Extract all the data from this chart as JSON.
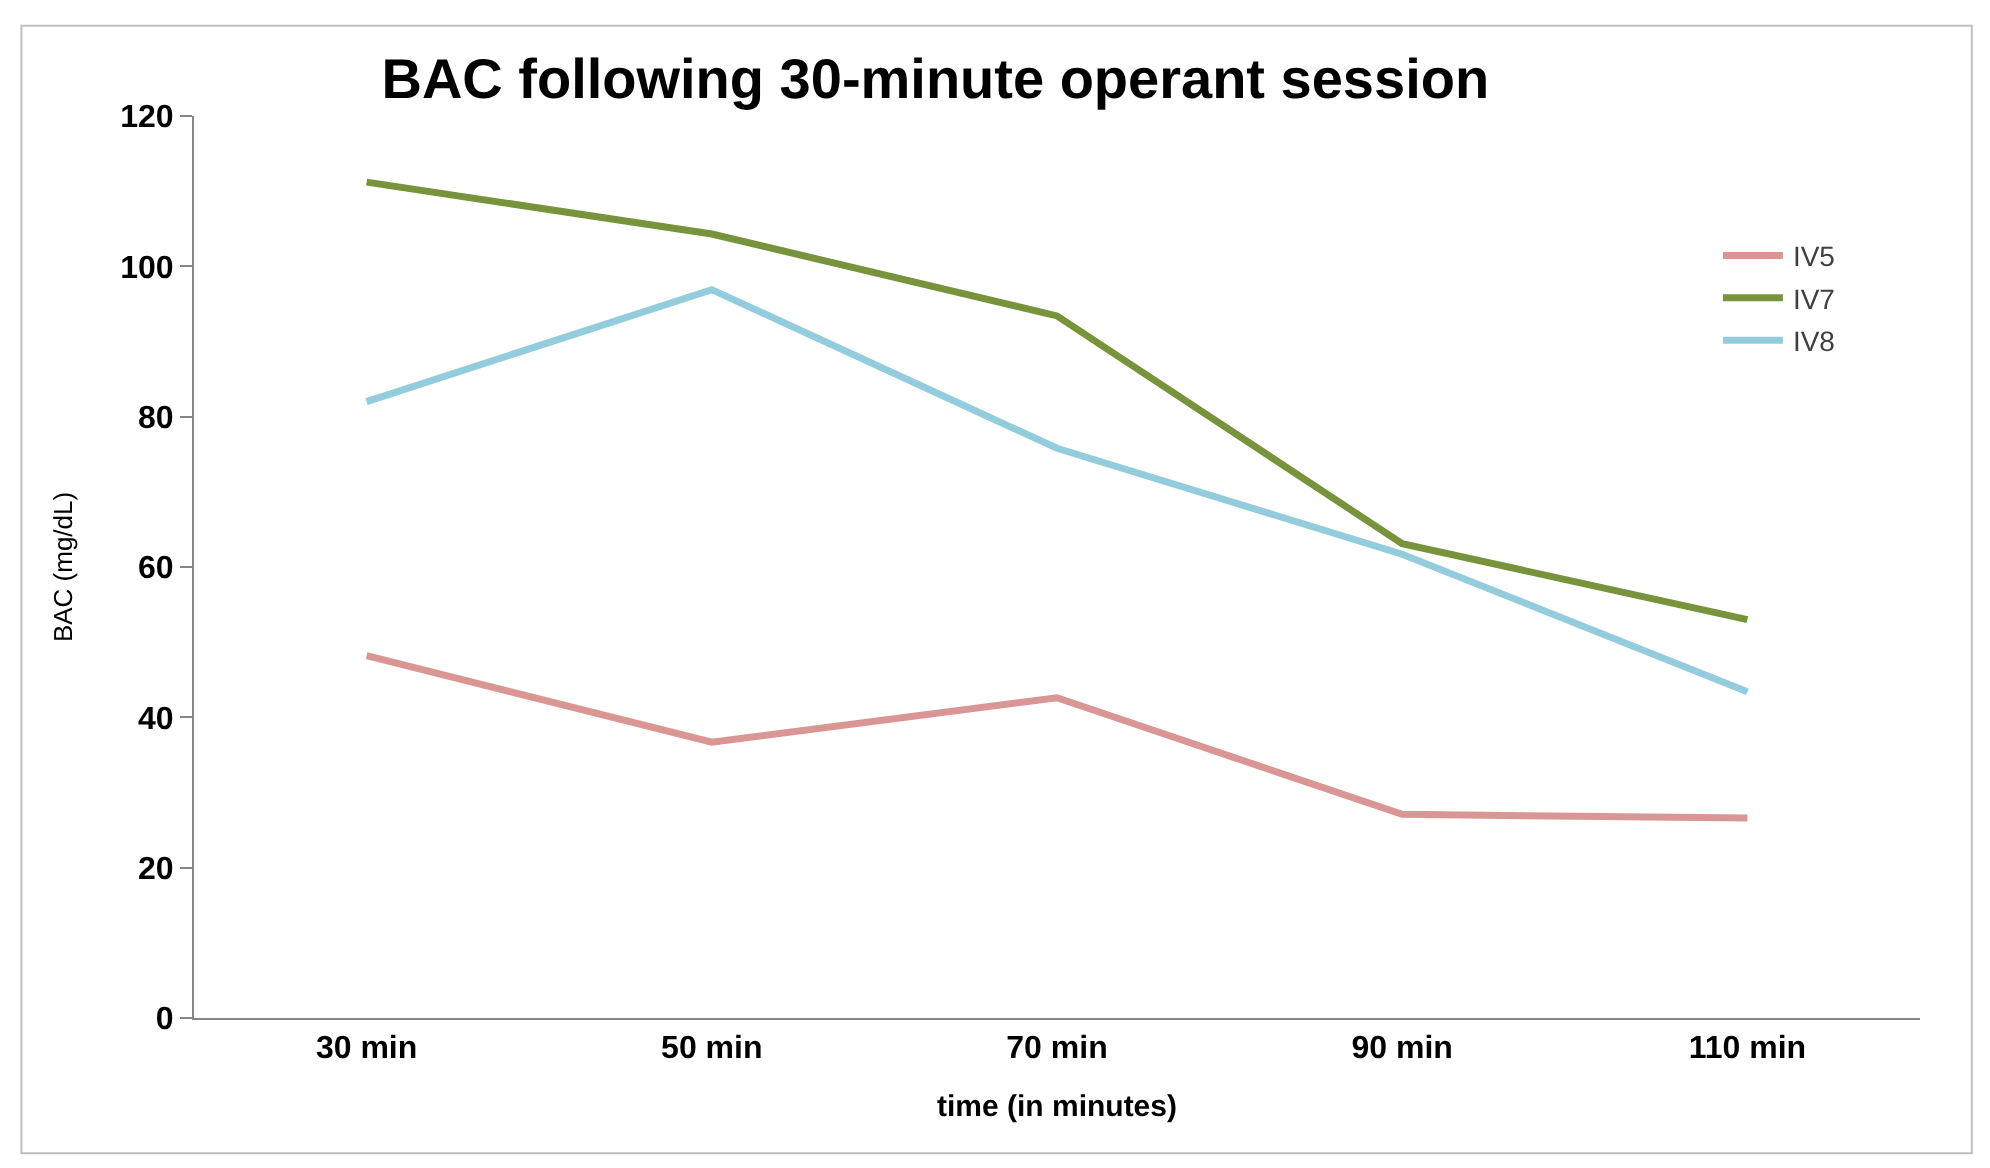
{
  "chart_data": {
    "type": "line",
    "title": "BAC following 30-minute operant session",
    "xlabel": "time (in minutes)",
    "ylabel": "BAC (mg/dL)",
    "categories": [
      "30 min",
      "50 min",
      "70 min",
      "90 min",
      "110 min"
    ],
    "series": [
      {
        "name": "IV5",
        "color": "#d99694",
        "values": [
          48.2,
          36.7,
          42.6,
          27.1,
          26.6
        ]
      },
      {
        "name": "IV7",
        "color": "#77933c",
        "values": [
          111.2,
          104.3,
          93.4,
          63.1,
          53
        ]
      },
      {
        "name": "IV8",
        "color": "#93cddd",
        "values": [
          82,
          96.9,
          75.8,
          61.7,
          43.4
        ]
      }
    ],
    "ylim": [
      0,
      120
    ],
    "yticks": [
      0,
      20,
      40,
      60,
      80,
      100,
      120
    ],
    "grid": false,
    "legend": "right",
    "marker": "none",
    "line_style": "solid"
  }
}
